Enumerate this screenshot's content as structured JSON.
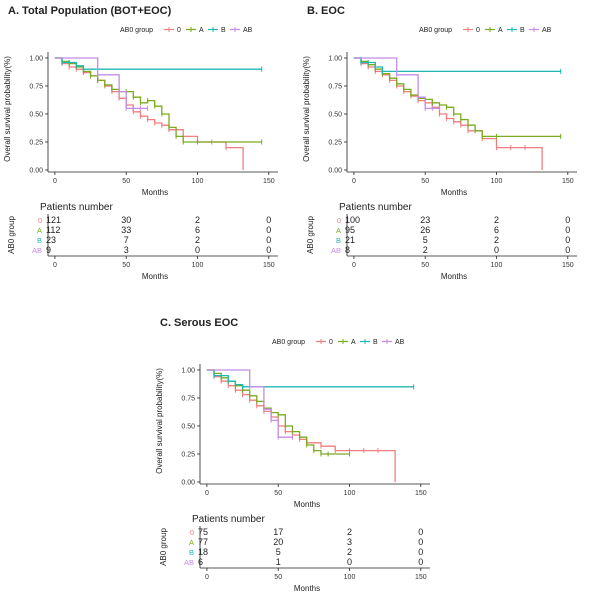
{
  "colors": {
    "0": "#f07f80",
    "A": "#7aaa1e",
    "B": "#1fb8b4",
    "AB": "#c58ce8"
  },
  "panels": [
    {
      "id": "A",
      "title": "A. Total Population (BOT+EOC)",
      "legend_title": "AB0 group",
      "legend_items": [
        "0",
        "A",
        "B",
        "AB"
      ],
      "ylabel": "Overall survival probability(%)",
      "xlabel": "Months",
      "y_ticks": [
        "0.00",
        "0.25",
        "0.50",
        "0.75",
        "1.00"
      ],
      "x_ticks": [
        "0",
        "50",
        "100",
        "150"
      ],
      "risk_title": "Patients number",
      "risk_ylabel": "AB0 group",
      "risk_xlabel": "Months",
      "risk_groups": [
        "0",
        "A",
        "B",
        "AB"
      ],
      "risk_values": [
        [
          "121",
          "30",
          "2",
          "0"
        ],
        [
          "112",
          "33",
          "6",
          "0"
        ],
        [
          "23",
          "7",
          "2",
          "0"
        ],
        [
          "9",
          "3",
          "0",
          "0"
        ]
      ]
    },
    {
      "id": "B",
      "title": "B. EOC",
      "legend_title": "AB0 group",
      "legend_items": [
        "0",
        "A",
        "B",
        "AB"
      ],
      "ylabel": "Overall survival probability(%)",
      "xlabel": "Months",
      "y_ticks": [
        "0.00",
        "0.25",
        "0.50",
        "0.75",
        "1.00"
      ],
      "x_ticks": [
        "0",
        "50",
        "100",
        "150"
      ],
      "risk_title": "Patients number",
      "risk_ylabel": "AB0 group",
      "risk_xlabel": "Months",
      "risk_groups": [
        "0",
        "A",
        "B",
        "AB"
      ],
      "risk_values": [
        [
          "100",
          "23",
          "2",
          "0"
        ],
        [
          "95",
          "26",
          "6",
          "0"
        ],
        [
          "21",
          "5",
          "2",
          "0"
        ],
        [
          "8",
          "2",
          "0",
          "0"
        ]
      ]
    },
    {
      "id": "C",
      "title": "C. Serous EOC",
      "legend_title": "AB0 group",
      "legend_items": [
        "0",
        "A",
        "B",
        "AB"
      ],
      "ylabel": "Overall survival probability(%)",
      "xlabel": "Months",
      "y_ticks": [
        "0.00",
        "0.25",
        "0.50",
        "0.75",
        "1.00"
      ],
      "x_ticks": [
        "0",
        "50",
        "100",
        "150"
      ],
      "risk_title": "Patients number",
      "risk_ylabel": "AB0 group",
      "risk_xlabel": "Months",
      "risk_groups": [
        "0",
        "A",
        "B",
        "AB"
      ],
      "risk_values": [
        [
          "75",
          "17",
          "2",
          "0"
        ],
        [
          "77",
          "20",
          "3",
          "0"
        ],
        [
          "18",
          "5",
          "2",
          "0"
        ],
        [
          "6",
          "1",
          "0",
          "0"
        ]
      ]
    }
  ],
  "chart_data": [
    {
      "type": "line",
      "title": "A. Total Population (BOT+EOC)",
      "xlabel": "Months",
      "ylabel": "Overall survival probability(%)",
      "xlim": [
        0,
        150
      ],
      "ylim": [
        0,
        1
      ],
      "legend": "top",
      "series": [
        {
          "name": "0",
          "x": [
            0,
            5,
            10,
            15,
            20,
            25,
            30,
            35,
            40,
            45,
            50,
            55,
            60,
            65,
            70,
            75,
            80,
            90,
            100,
            110,
            120,
            132
          ],
          "y": [
            1.0,
            0.95,
            0.92,
            0.9,
            0.87,
            0.84,
            0.8,
            0.75,
            0.7,
            0.64,
            0.58,
            0.52,
            0.48,
            0.45,
            0.42,
            0.4,
            0.36,
            0.3,
            0.25,
            0.25,
            0.2,
            0.0
          ]
        },
        {
          "name": "A",
          "x": [
            0,
            5,
            10,
            15,
            20,
            25,
            30,
            35,
            40,
            45,
            50,
            55,
            60,
            65,
            70,
            75,
            80,
            85,
            90,
            100,
            145
          ],
          "y": [
            1.0,
            0.97,
            0.95,
            0.92,
            0.88,
            0.84,
            0.8,
            0.76,
            0.72,
            0.7,
            0.7,
            0.65,
            0.6,
            0.62,
            0.57,
            0.5,
            0.38,
            0.3,
            0.25,
            0.25,
            0.25
          ]
        },
        {
          "name": "B",
          "x": [
            0,
            5,
            10,
            15,
            20,
            145
          ],
          "y": [
            1.0,
            0.96,
            0.96,
            0.93,
            0.9,
            0.9
          ]
        },
        {
          "name": "AB",
          "x": [
            0,
            30,
            45,
            50,
            55,
            60,
            65
          ],
          "y": [
            1.0,
            0.85,
            0.7,
            0.55,
            0.55,
            0.55,
            0.55
          ]
        }
      ]
    },
    {
      "type": "line",
      "title": "B. EOC",
      "xlabel": "Months",
      "ylabel": "Overall survival probability(%)",
      "xlim": [
        0,
        150
      ],
      "ylim": [
        0,
        1
      ],
      "legend": "top",
      "series": [
        {
          "name": "0",
          "x": [
            0,
            5,
            10,
            15,
            20,
            25,
            30,
            35,
            40,
            45,
            50,
            55,
            60,
            65,
            70,
            75,
            80,
            90,
            100,
            110,
            120,
            132
          ],
          "y": [
            1.0,
            0.95,
            0.92,
            0.88,
            0.85,
            0.8,
            0.75,
            0.7,
            0.66,
            0.62,
            0.6,
            0.56,
            0.5,
            0.46,
            0.43,
            0.4,
            0.35,
            0.28,
            0.2,
            0.2,
            0.2,
            0.0
          ]
        },
        {
          "name": "A",
          "x": [
            0,
            5,
            10,
            15,
            20,
            25,
            30,
            35,
            40,
            45,
            50,
            55,
            60,
            65,
            70,
            75,
            80,
            85,
            90,
            100,
            145
          ],
          "y": [
            1.0,
            0.97,
            0.94,
            0.9,
            0.86,
            0.82,
            0.77,
            0.72,
            0.67,
            0.64,
            0.63,
            0.6,
            0.58,
            0.56,
            0.5,
            0.45,
            0.4,
            0.35,
            0.3,
            0.3,
            0.3
          ]
        },
        {
          "name": "B",
          "x": [
            0,
            5,
            10,
            15,
            20,
            145
          ],
          "y": [
            1.0,
            0.96,
            0.96,
            0.92,
            0.88,
            0.88
          ]
        },
        {
          "name": "AB",
          "x": [
            0,
            30,
            45,
            50,
            55,
            60
          ],
          "y": [
            1.0,
            0.85,
            0.65,
            0.55,
            0.55,
            0.55
          ]
        }
      ]
    },
    {
      "type": "line",
      "title": "C. Serous EOC",
      "xlabel": "Months",
      "ylabel": "Overall survival probability(%)",
      "xlim": [
        0,
        150
      ],
      "ylim": [
        0,
        1
      ],
      "legend": "top",
      "series": [
        {
          "name": "0",
          "x": [
            0,
            5,
            10,
            15,
            20,
            25,
            30,
            35,
            40,
            45,
            50,
            55,
            60,
            65,
            70,
            80,
            90,
            100,
            110,
            120,
            132
          ],
          "y": [
            1.0,
            0.94,
            0.9,
            0.86,
            0.82,
            0.78,
            0.73,
            0.68,
            0.63,
            0.58,
            0.5,
            0.45,
            0.42,
            0.38,
            0.35,
            0.32,
            0.28,
            0.28,
            0.28,
            0.28,
            0.0
          ]
        },
        {
          "name": "A",
          "x": [
            0,
            5,
            10,
            15,
            20,
            25,
            30,
            35,
            40,
            45,
            50,
            55,
            60,
            65,
            70,
            75,
            80,
            85,
            100
          ],
          "y": [
            1.0,
            0.97,
            0.93,
            0.9,
            0.86,
            0.82,
            0.77,
            0.72,
            0.66,
            0.62,
            0.6,
            0.5,
            0.45,
            0.4,
            0.33,
            0.28,
            0.25,
            0.25,
            0.25
          ]
        },
        {
          "name": "B",
          "x": [
            0,
            5,
            10,
            15,
            20,
            25,
            145
          ],
          "y": [
            1.0,
            0.95,
            0.95,
            0.9,
            0.87,
            0.85,
            0.85
          ]
        },
        {
          "name": "AB",
          "x": [
            0,
            30,
            40,
            45,
            50,
            60
          ],
          "y": [
            1.0,
            0.85,
            0.65,
            0.55,
            0.4,
            0.4
          ]
        }
      ]
    }
  ]
}
